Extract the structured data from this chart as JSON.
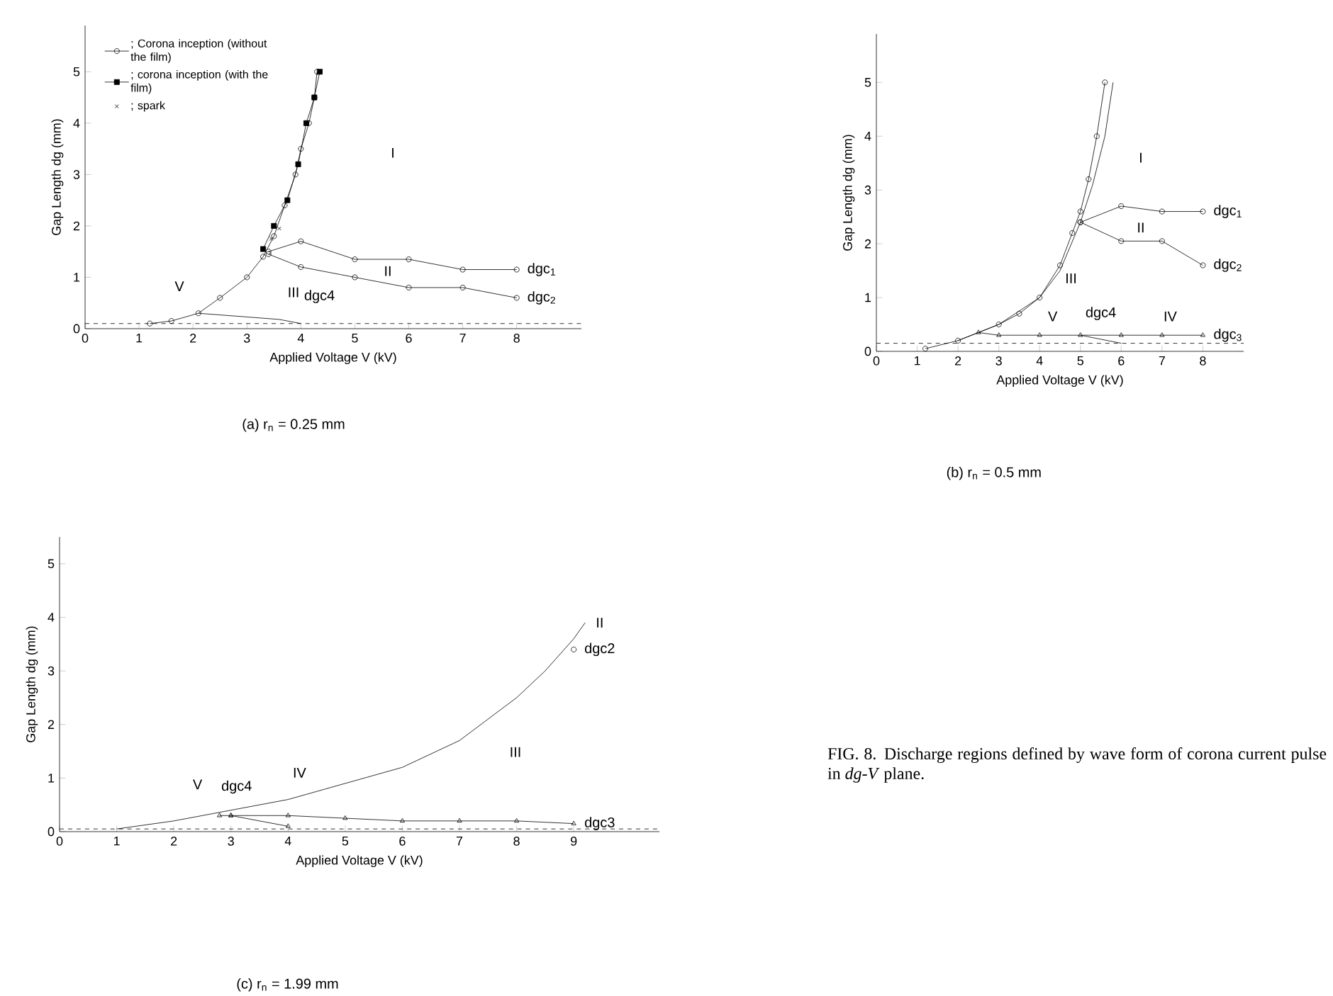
{
  "chart_data": [
    {
      "type": "line",
      "xlabel": "Applied Voltage  V (kV)",
      "ylabel": "Gap Length  dg (mm)",
      "subtitle": "(a)    r$_{n}$ = 0.25 mm",
      "xlim": [
        0,
        9.2
      ],
      "ylim": [
        0,
        5.9
      ],
      "xticks": [
        0,
        1,
        2,
        3,
        4,
        5,
        6,
        7,
        8
      ],
      "yticks": [
        0,
        1,
        2,
        3,
        4,
        5
      ],
      "legend": "top left",
      "series": [
        {
          "type": "line",
          "name": "; Corona inception (without the film)",
          "color": "#000000",
          "marker": "circle",
          "line_style": "solid",
          "x": [
            1.2,
            1.6,
            2.1,
            2.5,
            3.0,
            3.3,
            3.5,
            3.7,
            3.9,
            4.0,
            4.15,
            4.25,
            4.3
          ],
          "values": [
            0.1,
            0.15,
            0.3,
            0.6,
            1.0,
            1.4,
            1.8,
            2.4,
            3.0,
            3.5,
            4.0,
            4.5,
            5.0
          ]
        },
        {
          "type": "line",
          "name": "; corona inception (with the film)",
          "color": "#000000",
          "marker": "square",
          "line_style": "solid",
          "x": [
            3.3,
            3.5,
            3.75,
            3.95,
            4.1,
            4.25,
            4.35
          ],
          "values": [
            1.55,
            2.0,
            2.5,
            3.2,
            4.0,
            4.5,
            5.0
          ]
        },
        {
          "type": "scatter",
          "name": "; spark",
          "color": "#000000",
          "marker": "cross",
          "x": [
            3.45,
            3.6
          ],
          "values": [
            1.75,
            1.95
          ]
        },
        {
          "type": "line",
          "color": "#000000",
          "marker": "circle",
          "line_style": "solid",
          "x": [
            3.4,
            4,
            5,
            6,
            7,
            8
          ],
          "values": [
            1.5,
            1.7,
            1.35,
            1.35,
            1.15,
            1.15
          ]
        },
        {
          "type": "line",
          "color": "#000000",
          "marker": "circle",
          "line_style": "solid",
          "x": [
            3.4,
            4,
            5,
            6,
            7,
            8
          ],
          "values": [
            1.45,
            1.2,
            1.0,
            0.8,
            0.8,
            0.6
          ]
        },
        {
          "type": "line",
          "color": "#000000",
          "marker": "none",
          "line_style": "solid",
          "x": [
            2.1,
            3.6,
            4.0
          ],
          "values": [
            0.3,
            0.18,
            0.1
          ]
        }
      ],
      "ref_lines": [
        {
          "axis": "y",
          "value": 0.1,
          "line_style": "dashed"
        }
      ],
      "annotations": [
        "I",
        "II",
        "III",
        "V",
        {
          "text": "dgc4",
          "x": 3.6,
          "y": 0.18
        },
        {
          "text": "dgc$_{1}$",
          "x": 8,
          "y": 1.15
        },
        {
          "text": "dgc$_{2}$",
          "x": 8,
          "y": 0.6
        }
      ]
    },
    {
      "type": "line",
      "xlabel": "Applied Voltage  V (kV)",
      "ylabel": "Gap Length  dg (mm)",
      "subtitle": "(b)    r$_{n}$ = 0.5 mm",
      "xlim": [
        0,
        9
      ],
      "ylim": [
        0,
        5.9
      ],
      "xticks": [
        0,
        1,
        2,
        3,
        4,
        5,
        6,
        7,
        8
      ],
      "yticks": [
        0,
        1,
        2,
        3,
        4,
        5
      ],
      "series": [
        {
          "type": "line",
          "color": "#000000",
          "marker": "circle",
          "line_style": "solid",
          "x": [
            1.2,
            2,
            3,
            3.5,
            4,
            4.5,
            4.8,
            5.0,
            5.2,
            5.4,
            5.6
          ],
          "values": [
            0.05,
            0.2,
            0.5,
            0.7,
            1.0,
            1.6,
            2.2,
            2.6,
            3.2,
            4.0,
            5.0
          ]
        },
        {
          "type": "line",
          "color": "#000000",
          "marker": "none",
          "line_style": "solid",
          "x": [
            2,
            3,
            4,
            4.5,
            5,
            5.3,
            5.6,
            5.8
          ],
          "values": [
            0.2,
            0.5,
            1.0,
            1.5,
            2.4,
            3.1,
            4.0,
            5.0
          ]
        },
        {
          "type": "line",
          "color": "#000000",
          "marker": "circle",
          "line_style": "solid",
          "x": [
            5,
            6,
            7,
            8
          ],
          "values": [
            2.4,
            2.7,
            2.6,
            2.6
          ]
        },
        {
          "type": "line",
          "color": "#000000",
          "marker": "circle",
          "line_style": "solid",
          "x": [
            5,
            6,
            7,
            8
          ],
          "values": [
            2.4,
            2.05,
            2.05,
            1.6
          ]
        },
        {
          "type": "line",
          "color": "#000000",
          "marker": "triangle",
          "line_style": "solid",
          "x": [
            2.5,
            3,
            4,
            5,
            6,
            7,
            8
          ],
          "values": [
            0.35,
            0.3,
            0.3,
            0.3,
            0.3,
            0.3,
            0.3
          ]
        },
        {
          "type": "line",
          "color": "#000000",
          "marker": "none",
          "line_style": "solid",
          "x": [
            5,
            6
          ],
          "values": [
            0.3,
            0.15
          ]
        }
      ],
      "ref_lines": [
        {
          "axis": "y",
          "value": 0.15,
          "line_style": "dashed"
        }
      ],
      "annotations": [
        "I",
        "II",
        "III",
        "V",
        {
          "text": "dgc4",
          "x": 5.5,
          "y": 0.225
        },
        "IV",
        {
          "text": "dgc$_{1}$",
          "x": 8,
          "y": 2.6
        },
        {
          "text": "dgc$_{2}$",
          "x": 8,
          "y": 1.6
        },
        {
          "text": "dgc$_{3}$",
          "x": 8,
          "y": 0.3
        }
      ]
    },
    {
      "type": "line",
      "xlabel": "Applied Voltage  V (kV)",
      "ylabel": "Gap Length  dg (mm)",
      "subtitle": "(c)    r$_{n}$ = 1.99 mm",
      "xlim": [
        0,
        10.5
      ],
      "ylim": [
        0,
        5.5
      ],
      "xticks": [
        0,
        1,
        2,
        3,
        4,
        5,
        6,
        7,
        8,
        9
      ],
      "yticks": [
        0,
        1,
        2,
        3,
        4,
        5
      ],
      "series": [
        {
          "type": "line",
          "color": "#000000",
          "marker": "none",
          "line_style": "solid",
          "x": [
            1,
            2,
            3,
            4,
            5,
            6,
            7,
            8,
            8.5,
            9,
            9.2
          ],
          "values": [
            0.05,
            0.2,
            0.4,
            0.6,
            0.9,
            1.2,
            1.7,
            2.5,
            3.0,
            3.6,
            3.9
          ]
        },
        {
          "type": "scatter",
          "color": "#000000",
          "marker": "circle",
          "x": [
            9.0
          ],
          "values": [
            3.4
          ]
        },
        {
          "type": "line",
          "color": "#000000",
          "marker": "triangle",
          "line_style": "solid",
          "x": [
            2.8,
            3,
            4,
            5,
            6,
            7,
            8,
            9
          ],
          "values": [
            0.3,
            0.3,
            0.3,
            0.25,
            0.2,
            0.2,
            0.2,
            0.15
          ]
        },
        {
          "type": "line",
          "color": "#000000",
          "marker": "triangle",
          "line_style": "solid",
          "x": [
            3,
            4
          ],
          "values": [
            0.3,
            0.1
          ]
        }
      ],
      "ref_lines": [
        {
          "axis": "y",
          "value": 0.05,
          "line_style": "dashed"
        }
      ],
      "annotations": [
        {
          "text": "II",
          "x": 9.2,
          "y": 3.9
        },
        "III",
        "V",
        {
          "text": "dgc4",
          "x": 3,
          "y": 0.3
        },
        "IV",
        {
          "text": "dgc2",
          "x": 9,
          "y": 3.4
        },
        {
          "text": "dgc3",
          "x": 9,
          "y": 0.15
        }
      ]
    },
    {
      "type": "other",
      "title": "FIG. 8.  Discharge regions defined by wave form of corona current pulse in *dg*-*V* plane."
    }
  ]
}
